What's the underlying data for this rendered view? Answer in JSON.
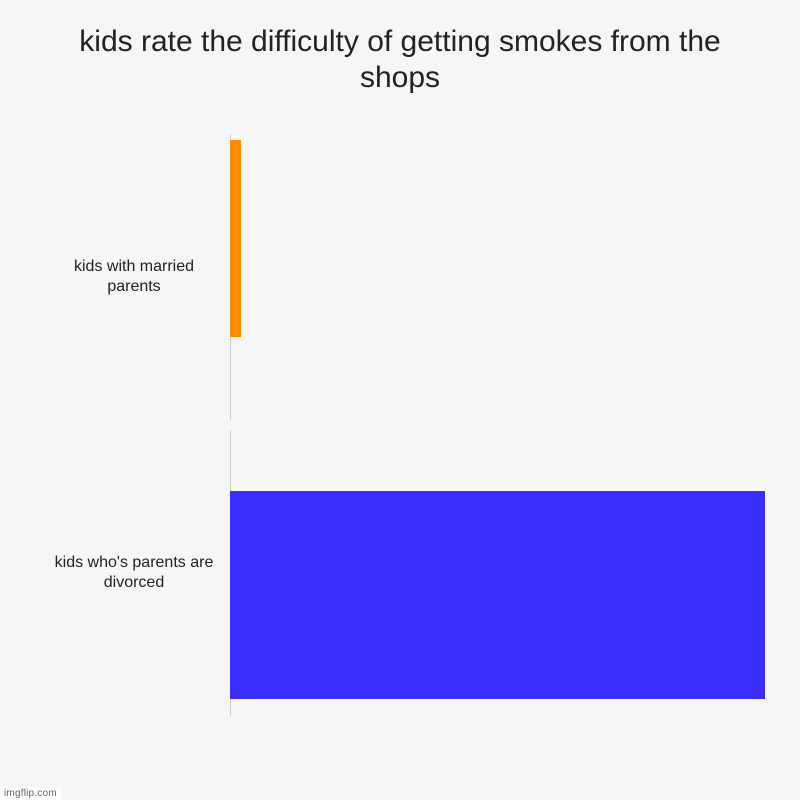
{
  "chart": {
    "type": "bar",
    "orientation": "horizontal",
    "title": "kids rate the difficulty of getting smokes from the shops",
    "title_fontsize": 30,
    "background_color": "#f6f6f6",
    "text_color": "#222222",
    "label_fontsize": 16,
    "xlim": [
      0,
      100
    ],
    "bars": [
      {
        "label": "kids with married parents",
        "value": 2,
        "color": "#ff8c00",
        "bar_height_pct": 72,
        "bar_top_pct": 0
      },
      {
        "label": "kids who's parents are divorced",
        "value": 99,
        "color": "#3a2efc",
        "bar_height_pct": 76,
        "bar_top_pct": 20
      }
    ]
  },
  "watermark": "imgflip.com"
}
